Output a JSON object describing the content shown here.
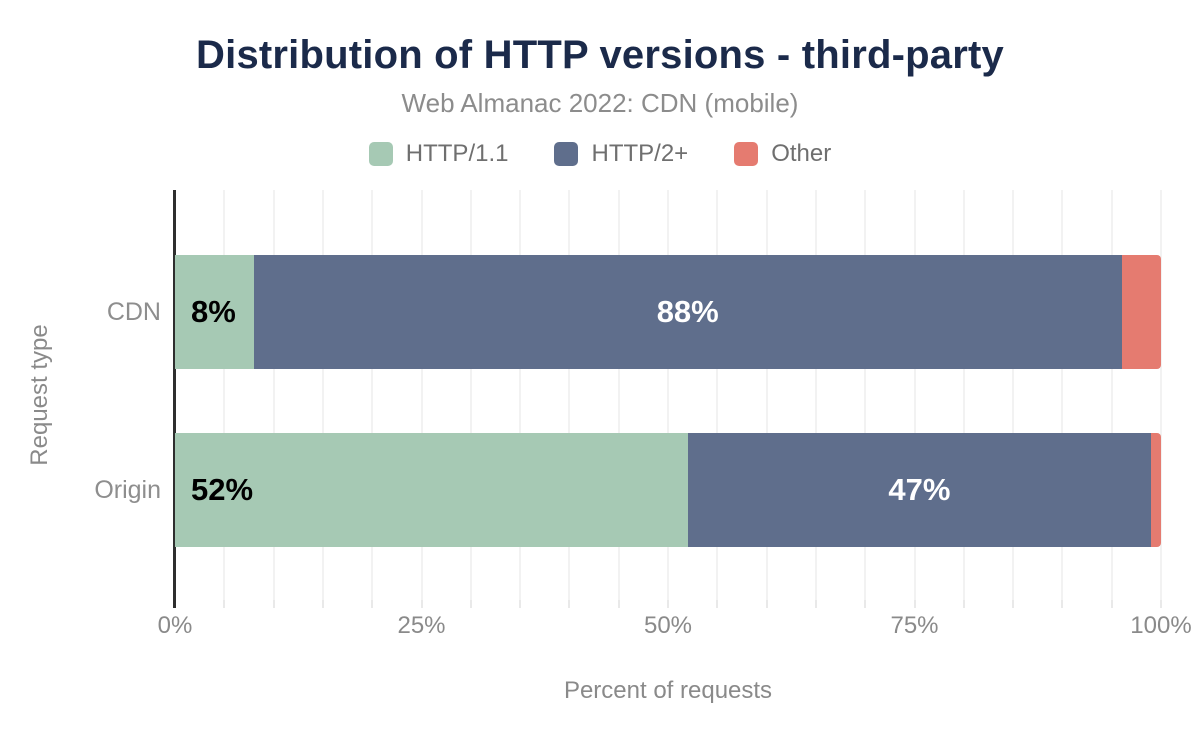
{
  "header": {
    "title": "Distribution of HTTP versions - third-party",
    "subtitle": "Web Almanac 2022: CDN (mobile)"
  },
  "colors": {
    "title_text": "#1b2a4a",
    "secondary_text": "#8a8a8a",
    "axis_line": "#2e2e2e",
    "gridline": "#f2f2f2",
    "http11_green": "#a6c9b4",
    "http2_slate": "#5f6e8c",
    "other_salmon": "#e57b70"
  },
  "chart_data": {
    "type": "bar",
    "orientation": "horizontal",
    "stacked": true,
    "title": "Distribution of HTTP versions - third-party",
    "subtitle": "Web Almanac 2022: CDN (mobile)",
    "xlabel": "Percent of requests",
    "ylabel": "Request type",
    "categories": [
      "CDN",
      "Origin"
    ],
    "series": [
      {
        "name": "HTTP/1.1",
        "color": "#a6c9b4",
        "values": [
          8,
          52
        ],
        "data_labels": [
          "8%",
          "52%"
        ],
        "label_color": "#000000",
        "label_align": "start"
      },
      {
        "name": "HTTP/2+",
        "color": "#5f6e8c",
        "values": [
          88,
          47
        ],
        "data_labels": [
          "88%",
          "47%"
        ],
        "label_color": "#ffffff",
        "label_align": "center"
      },
      {
        "name": "Other",
        "color": "#e57b70",
        "values": [
          4,
          1
        ],
        "data_labels": [
          "",
          ""
        ],
        "label_color": "#ffffff",
        "label_align": "center"
      }
    ],
    "xlim": [
      0,
      100
    ],
    "x_ticks": [
      {
        "value": 0,
        "label": "0%"
      },
      {
        "value": 25,
        "label": "25%"
      },
      {
        "value": 50,
        "label": "50%"
      },
      {
        "value": 75,
        "label": "75%"
      },
      {
        "value": 100,
        "label": "100%"
      }
    ],
    "grid": {
      "show": true,
      "minor_step": 5
    },
    "legend_position": "top"
  }
}
